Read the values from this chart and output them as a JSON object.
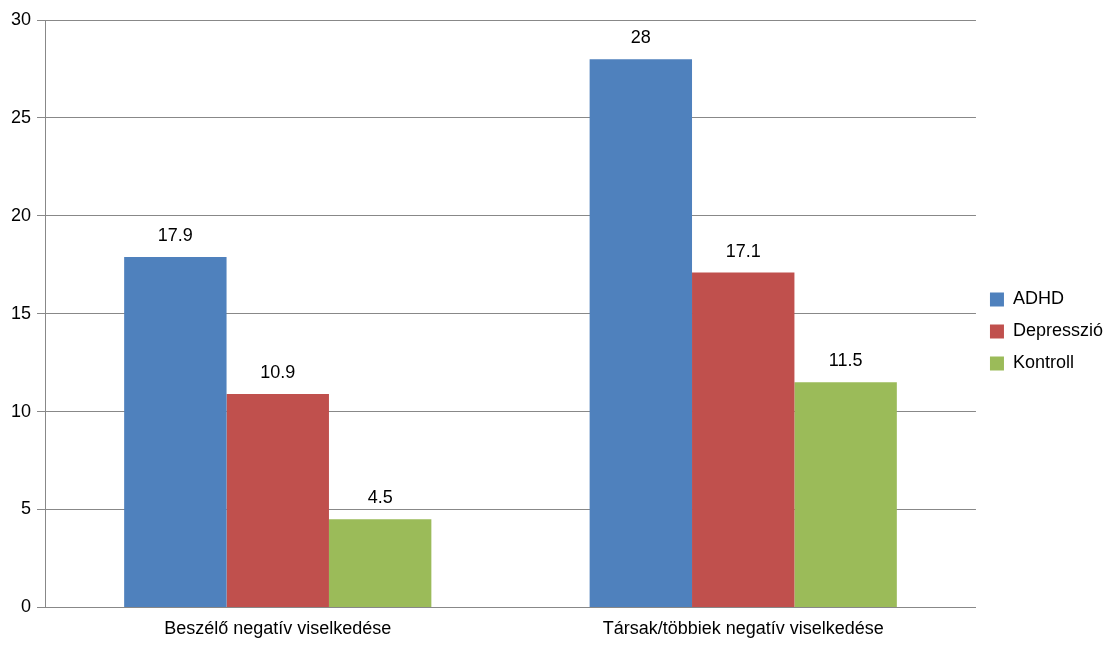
{
  "chart_data": {
    "type": "bar",
    "categories": [
      "Beszélő negatív viselkedése",
      "Társak/többiek negatív viselkedése"
    ],
    "series": [
      {
        "name": "ADHD",
        "color": "#4f81bd",
        "values": [
          17.9,
          28
        ]
      },
      {
        "name": "Depresszió",
        "color": "#c0504d",
        "values": [
          10.9,
          17.1
        ]
      },
      {
        "name": "Kontroll",
        "color": "#9bbb59",
        "values": [
          4.5,
          11.5
        ]
      }
    ],
    "ylim": [
      0,
      30
    ],
    "yticks": [
      0,
      5,
      10,
      15,
      20,
      25,
      30
    ],
    "grid": "y",
    "legend": "right",
    "data_labels": true
  }
}
